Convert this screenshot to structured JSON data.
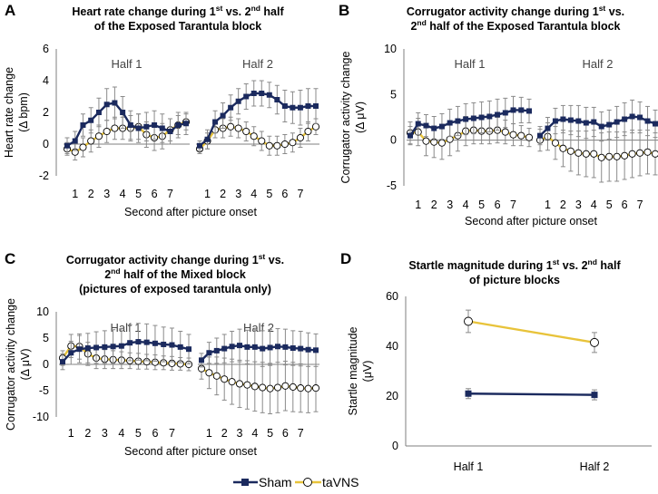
{
  "colors": {
    "sham": "#1b2a5e",
    "tavns": "#e8c33a",
    "errorbar": "#8a8a8a",
    "axis": "#7f7f7f"
  },
  "legend": {
    "sham": "Sham",
    "tavns": "taVNS"
  },
  "chart_data": [
    {
      "id": "A",
      "type": "line",
      "letter": "A",
      "title_lines": [
        {
          "pre": "Heart rate change during 1",
          "sup1": "st",
          "mid": " vs. 2",
          "sup2": "nd",
          "post": " half"
        },
        {
          "pre": "of the Exposed Tarantula block"
        }
      ],
      "ylabel": [
        "Heart rate change",
        "(Δ bpm)"
      ],
      "xlabel": "Second after picture onset",
      "ylim": [
        -2,
        6
      ],
      "yticks": [
        -2,
        0,
        2,
        4,
        6
      ],
      "halves": [
        "Half 1",
        "Half 2"
      ],
      "xtick_labels": [
        "1",
        "2",
        "3",
        "4",
        "5",
        "6",
        "7"
      ],
      "series": [
        {
          "name": "Sham",
          "half1": [
            -0.1,
            0.2,
            1.2,
            1.5,
            2.0,
            2.5,
            2.6,
            2.0,
            1.2,
            1.0,
            1.1,
            1.2,
            1.0,
            0.8,
            1.2,
            1.3
          ],
          "half1_err": [
            0.5,
            0.6,
            0.7,
            0.8,
            0.9,
            1.0,
            1.0,
            1.0,
            0.9,
            0.9,
            0.9,
            0.9,
            0.9,
            0.8,
            0.8,
            0.7
          ],
          "half2": [
            -0.1,
            0.3,
            1.4,
            1.8,
            2.3,
            2.7,
            3.0,
            3.2,
            3.2,
            3.1,
            2.8,
            2.4,
            2.3,
            2.3,
            2.4,
            2.4
          ],
          "half2_err": [
            0.3,
            0.6,
            0.7,
            0.8,
            0.8,
            0.8,
            0.8,
            0.8,
            0.8,
            0.8,
            0.9,
            1.0,
            1.0,
            1.1,
            1.1,
            1.1
          ]
        },
        {
          "name": "taVNS",
          "half1": [
            -0.3,
            -0.5,
            -0.2,
            0.2,
            0.5,
            0.8,
            1.0,
            1.0,
            1.0,
            1.1,
            0.6,
            0.4,
            0.5,
            0.9,
            1.2,
            1.4
          ],
          "half1_err": [
            0.4,
            0.5,
            0.6,
            0.7,
            0.7,
            0.7,
            0.7,
            0.7,
            0.8,
            0.8,
            0.8,
            0.8,
            0.8,
            0.7,
            0.6,
            0.5
          ],
          "half2": [
            -0.3,
            0.2,
            0.9,
            1.0,
            1.1,
            1.0,
            0.8,
            0.5,
            0.2,
            -0.1,
            -0.1,
            0.0,
            0.1,
            0.4,
            0.8,
            1.1
          ],
          "half2_err": [
            0.3,
            0.5,
            0.5,
            0.6,
            0.6,
            0.6,
            0.6,
            0.6,
            0.6,
            0.6,
            0.6,
            0.6,
            0.6,
            0.6,
            0.6,
            0.5
          ]
        }
      ]
    },
    {
      "id": "B",
      "type": "line",
      "letter": "B",
      "title_lines": [
        {
          "pre": "Corrugator activity change during 1",
          "sup1": "st",
          "mid": " vs.",
          "post": ""
        },
        {
          "pre": "2",
          "sup1": "nd",
          "mid": " half of the Exposed Tarantula block"
        }
      ],
      "ylabel": [
        "Corrugator activity change",
        "(Δ μV)"
      ],
      "xlabel": "Second after picture onset",
      "ylim": [
        -5,
        10
      ],
      "yticks": [
        -5,
        0,
        5,
        10
      ],
      "halves": [
        "Half 1",
        "Half 2"
      ],
      "xtick_labels": [
        "1",
        "2",
        "3",
        "4",
        "5",
        "6",
        "7"
      ],
      "series": [
        {
          "name": "Sham",
          "half1": [
            0.5,
            1.8,
            1.6,
            1.3,
            1.5,
            1.9,
            2.1,
            2.3,
            2.4,
            2.5,
            2.6,
            2.8,
            3.0,
            3.3,
            3.3,
            3.2
          ],
          "half1_err": [
            1.0,
            1.2,
            1.2,
            1.3,
            1.4,
            1.5,
            1.6,
            1.7,
            1.7,
            1.7,
            1.7,
            1.7,
            1.6,
            1.5,
            1.4,
            1.3
          ],
          "half2": [
            0.5,
            1.3,
            2.1,
            2.3,
            2.2,
            2.1,
            1.9,
            2.0,
            1.5,
            1.7,
            2.0,
            2.3,
            2.6,
            2.5,
            2.1,
            1.8
          ],
          "half2_err": [
            1.0,
            1.2,
            1.4,
            1.5,
            1.6,
            1.7,
            1.7,
            1.6,
            1.6,
            1.6,
            1.7,
            1.8,
            1.8,
            1.7,
            1.6,
            1.5
          ]
        },
        {
          "name": "taVNS",
          "half1": [
            0.8,
            0.9,
            -0.1,
            -0.2,
            -0.3,
            0.1,
            0.5,
            1.0,
            1.1,
            1.0,
            1.0,
            1.1,
            0.9,
            0.6,
            0.5,
            0.3
          ],
          "half1_err": [
            1.2,
            1.5,
            1.6,
            1.7,
            1.8,
            1.8,
            1.7,
            1.6,
            1.5,
            1.4,
            1.4,
            1.4,
            1.3,
            1.2,
            1.1,
            1.0
          ],
          "half2": [
            0.0,
            0.4,
            -0.3,
            -0.9,
            -1.2,
            -1.4,
            -1.5,
            -1.5,
            -1.9,
            -1.8,
            -1.8,
            -1.7,
            -1.5,
            -1.4,
            -1.3,
            -1.5
          ],
          "half2_err": [
            1.2,
            1.5,
            1.8,
            2.0,
            2.2,
            2.4,
            2.5,
            2.6,
            2.7,
            2.7,
            2.7,
            2.6,
            2.6,
            2.5,
            2.4,
            2.3
          ]
        }
      ]
    },
    {
      "id": "C",
      "type": "line",
      "letter": "C",
      "title_lines": [
        {
          "pre": "Corrugator activity change during 1",
          "sup1": "st",
          "mid": " vs.",
          "post": ""
        },
        {
          "pre": "2",
          "sup1": "nd",
          "mid": " half of the Mixed block"
        },
        {
          "pre": "(pictures of exposed tarantula only)"
        }
      ],
      "ylabel": [
        "Corrugator activity change",
        "(Δ μV)"
      ],
      "xlabel": "Second after picture onset",
      "ylim": [
        -10,
        10
      ],
      "yticks": [
        -10,
        -5,
        0,
        5,
        10
      ],
      "halves": [
        "Half 1",
        "Half 2"
      ],
      "xtick_labels": [
        "1",
        "2",
        "3",
        "4",
        "5",
        "6",
        "7"
      ],
      "series": [
        {
          "name": "Sham",
          "half1": [
            0.5,
            2.2,
            2.9,
            3.1,
            3.2,
            3.3,
            3.4,
            3.5,
            4.1,
            4.3,
            4.2,
            4.0,
            3.8,
            3.7,
            3.3,
            2.9
          ],
          "half1_err": [
            1.5,
            2.2,
            2.6,
            2.8,
            3.0,
            3.1,
            3.2,
            3.3,
            3.4,
            3.5,
            3.5,
            3.4,
            3.3,
            3.2,
            3.0,
            2.8
          ],
          "half2": [
            0.8,
            2.2,
            2.6,
            3.0,
            3.4,
            3.6,
            3.3,
            3.3,
            3.0,
            3.2,
            3.4,
            3.3,
            3.1,
            3.0,
            2.8,
            2.7
          ],
          "half2_err": [
            1.3,
            2.0,
            2.4,
            2.7,
            2.9,
            3.1,
            3.2,
            3.3,
            3.4,
            3.4,
            3.4,
            3.4,
            3.3,
            3.3,
            3.2,
            3.1
          ]
        },
        {
          "name": "taVNS",
          "half1": [
            1.2,
            3.5,
            3.4,
            2.0,
            1.2,
            1.0,
            0.9,
            0.8,
            0.7,
            0.6,
            0.5,
            0.4,
            0.3,
            0.2,
            0.1,
            0.0
          ],
          "half1_err": [
            1.4,
            2.2,
            2.4,
            2.2,
            2.0,
            1.8,
            1.7,
            1.6,
            1.5,
            1.5,
            1.4,
            1.4,
            1.3,
            1.3,
            1.2,
            1.2
          ],
          "half2": [
            -0.8,
            -1.6,
            -2.2,
            -2.8,
            -3.3,
            -3.7,
            -3.9,
            -4.2,
            -4.4,
            -4.6,
            -4.4,
            -4.1,
            -4.3,
            -4.5,
            -4.6,
            -4.5
          ],
          "half2_err": [
            2.0,
            3.0,
            3.6,
            4.0,
            4.3,
            4.5,
            4.6,
            4.7,
            4.8,
            4.8,
            4.8,
            4.7,
            4.7,
            4.6,
            4.6,
            4.5
          ]
        }
      ]
    },
    {
      "id": "D",
      "type": "line",
      "letter": "D",
      "title_lines": [
        {
          "pre": "Startle magnitude during 1",
          "sup1": "st",
          "mid": " vs. 2",
          "sup2": "nd",
          "post": " half"
        },
        {
          "pre": "of picture blocks"
        }
      ],
      "ylabel": [
        "Startle magnitude",
        "(μV)"
      ],
      "xlabel": "",
      "ylim": [
        0,
        60
      ],
      "yticks": [
        0,
        20,
        40,
        60
      ],
      "categories": [
        "Half 1",
        "Half 2"
      ],
      "series": [
        {
          "name": "Sham",
          "values": [
            21,
            20.5
          ],
          "err": [
            2.0,
            2.0
          ]
        },
        {
          "name": "taVNS",
          "values": [
            50,
            41.5
          ],
          "err": [
            4.5,
            4.0
          ]
        }
      ]
    }
  ]
}
